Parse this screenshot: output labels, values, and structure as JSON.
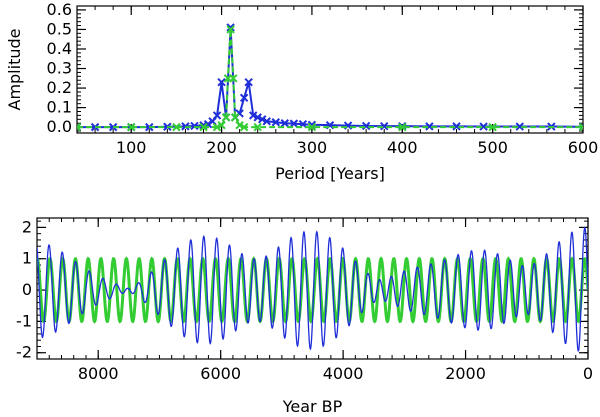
{
  "chart_data": [
    {
      "type": "line",
      "title": "",
      "xlabel": "Period [Years]",
      "ylabel": "Amplitude",
      "xlim": [
        40,
        600
      ],
      "ylim": [
        -0.03,
        0.62
      ],
      "xticks": [
        100,
        200,
        300,
        400,
        500,
        600
      ],
      "xtick_labels": [
        "100",
        "200",
        "300",
        "400",
        "500",
        "600"
      ],
      "yticks": [
        0.0,
        0.1,
        0.2,
        0.3,
        0.4,
        0.5,
        0.6
      ],
      "ytick_labels": [
        "0.0",
        "0.1",
        "0.2",
        "0.3",
        "0.4",
        "0.5",
        "0.6"
      ],
      "series": [
        {
          "name": "spectrum-blue",
          "color": "#1f2fd8",
          "marker": "x",
          "x": [
            40,
            60,
            80,
            100,
            120,
            140,
            160,
            170,
            180,
            185,
            190,
            195,
            200,
            205,
            210,
            215,
            220,
            225,
            230,
            235,
            240,
            245,
            250,
            260,
            270,
            280,
            290,
            300,
            320,
            340,
            360,
            380,
            400,
            430,
            460,
            490,
            530,
            565,
            600
          ],
          "y": [
            0.0,
            0.0,
            0.0,
            0.0,
            0.0,
            0.002,
            0.004,
            0.006,
            0.01,
            0.015,
            0.03,
            0.06,
            0.23,
            0.05,
            0.51,
            0.05,
            0.07,
            0.15,
            0.23,
            0.06,
            0.05,
            0.04,
            0.03,
            0.025,
            0.02,
            0.018,
            0.015,
            0.012,
            0.01,
            0.008,
            0.006,
            0.005,
            0.005,
            0.004,
            0.004,
            0.003,
            0.003,
            0.003,
            0.002
          ]
        },
        {
          "name": "spectrum-green",
          "color": "#33cc33",
          "marker": "x",
          "x": [
            40,
            100,
            150,
            180,
            195,
            200,
            205,
            207,
            210,
            213,
            215,
            220,
            225,
            240,
            300,
            400,
            500,
            600
          ],
          "y": [
            0.0,
            0.0,
            0.0,
            0.0,
            0.0,
            0.01,
            0.05,
            0.25,
            0.5,
            0.25,
            0.05,
            0.01,
            0.0,
            0.0,
            0.0,
            0.0,
            0.0,
            0.0
          ]
        }
      ]
    },
    {
      "type": "line",
      "title": "",
      "xlabel": "Year BP",
      "ylabel": "",
      "xlim": [
        9000,
        0
      ],
      "ylim": [
        -2.2,
        2.3
      ],
      "xticks": [
        8000,
        6000,
        4000,
        2000,
        0
      ],
      "xtick_labels": [
        "8000",
        "6000",
        "4000",
        "2000",
        "0"
      ],
      "yticks": [
        -2,
        -1,
        0,
        1,
        2
      ],
      "ytick_labels": [
        "-2",
        "-1",
        "0",
        "1",
        "2"
      ],
      "series": [
        {
          "name": "sinusoid-green",
          "color": "#33cc33",
          "period_years": 208,
          "amplitude": 1.0
        },
        {
          "name": "beat-signal-blue",
          "color": "#1f2fd8",
          "components": [
            {
              "period_years": 208,
              "amplitude": 1.0
            },
            {
              "period_years": 200,
              "amplitude": 0.5
            },
            {
              "period_years": 230,
              "amplitude": 0.5
            }
          ]
        }
      ]
    }
  ]
}
